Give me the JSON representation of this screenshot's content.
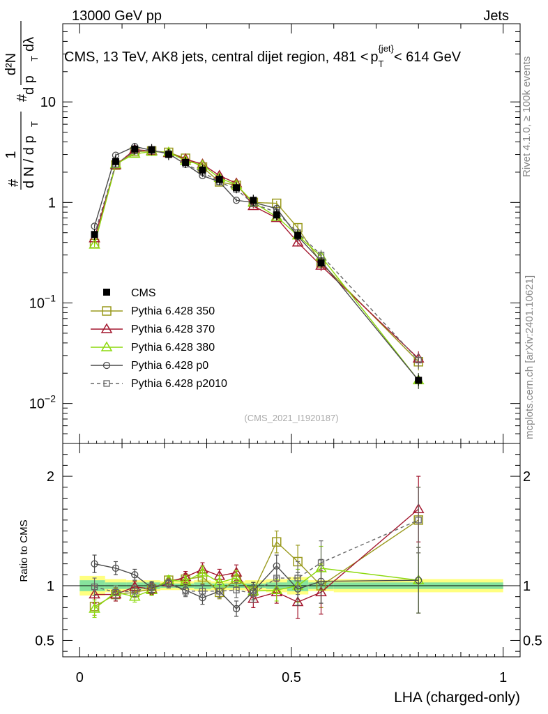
{
  "header": {
    "energy": "13000 GeV pp",
    "category": "Jets"
  },
  "side": {
    "rivet": "Rivet 4.1.0, ≥ 100k events",
    "mcplots": "mcplots.cern.ch [arXiv:2401.10621]"
  },
  "watermark": "(CMS_2021_I1920187)",
  "ylabel_parts": {
    "n1": "1",
    "d1": "d N / d p",
    "t1": "T",
    "hash": "#",
    "n2": "d²N",
    "d2": "d p",
    "t2": "T",
    "d3": "dλ"
  },
  "chart_data": {
    "type": "line",
    "title": "CMS, 13 TeV, AK8 jets, central dijet region, 481 < p_T^{jet} < 614 GeV",
    "title_parts": {
      "main": "CMS, 13 TeV, AK8 jets, central dijet region, 481 <",
      "p": "p",
      "sub": "T",
      "sup": "{jet}",
      "tail": "< 614 GeV"
    },
    "xlabel": "LHA (charged-only)",
    "ylabel": "#1/dN/dp_T # d²N/dp_T dλ",
    "ratio_ylabel": "Ratio to CMS",
    "xlim": [
      -0.04,
      1.04
    ],
    "ylim": [
      0.004,
      60
    ],
    "yscale": "log",
    "ratio_ylim": [
      0.35,
      2.3
    ],
    "x_ticks": [
      0,
      0.5,
      1
    ],
    "x_tick_labels": [
      "0",
      "0.5",
      "1"
    ],
    "y_ticks": [
      0.01,
      0.1,
      1,
      10
    ],
    "y_tick_labels": [
      {
        "base": "10",
        "exp": "−2"
      },
      {
        "base": "10",
        "exp": "−1"
      },
      {
        "base": "1",
        "exp": ""
      },
      {
        "base": "10",
        "exp": ""
      }
    ],
    "ratio_ticks": [
      0.5,
      1,
      2
    ],
    "ratio_tick_labels": [
      "0.5",
      "1",
      "2"
    ],
    "legend_position": "middle-left",
    "x": [
      0.035,
      0.085,
      0.13,
      0.17,
      0.21,
      0.25,
      0.29,
      0.33,
      0.37,
      0.41,
      0.465,
      0.515,
      0.57,
      0.8
    ],
    "data": {
      "name": "CMS",
      "values": [
        0.48,
        2.55,
        3.4,
        3.35,
        3.0,
        2.5,
        2.1,
        1.7,
        1.4,
        1.05,
        0.75,
        0.47,
        0.25,
        0.017
      ],
      "band_edges": [
        0.0,
        0.06,
        0.11,
        0.15,
        0.19,
        0.23,
        0.27,
        0.31,
        0.35,
        0.39,
        0.44,
        0.49,
        0.54,
        0.6,
        1.0
      ],
      "band_inner": [
        0.05,
        0.03,
        0.03,
        0.03,
        0.02,
        0.02,
        0.03,
        0.02,
        0.02,
        0.02,
        0.03,
        0.05,
        0.03,
        0.03
      ],
      "band_outer": [
        0.09,
        0.06,
        0.05,
        0.05,
        0.04,
        0.04,
        0.05,
        0.04,
        0.04,
        0.05,
        0.06,
        0.08,
        0.05,
        0.06
      ]
    },
    "series": [
      {
        "name": "Pythia 6.428 350",
        "color": "#9a9a1e",
        "marker": "square",
        "dashed": false,
        "values": [
          0.39,
          2.35,
          3.2,
          3.25,
          3.15,
          2.75,
          2.25,
          1.6,
          1.48,
          1.0,
          0.98,
          0.56,
          0.25,
          0.026
        ],
        "ratio": [
          0.81,
          0.92,
          0.94,
          0.97,
          1.05,
          1.06,
          1.08,
          0.94,
          1.06,
          0.95,
          1.4,
          1.22,
          1.0,
          1.6
        ],
        "err": [
          0.08,
          0.06,
          0.05,
          0.05,
          0.04,
          0.05,
          0.06,
          0.06,
          0.07,
          0.08,
          0.1,
          0.15,
          0.2,
          0.3
        ]
      },
      {
        "name": "Pythia 6.428 370",
        "color": "#a3172e",
        "marker": "triangle",
        "dashed": false,
        "values": [
          0.44,
          2.35,
          3.35,
          3.25,
          3.1,
          2.7,
          2.4,
          1.85,
          1.55,
          0.92,
          0.7,
          0.4,
          0.235,
          0.028
        ],
        "ratio": [
          0.92,
          0.92,
          0.99,
          0.97,
          1.03,
          1.08,
          1.15,
          1.09,
          1.12,
          0.88,
          0.94,
          0.85,
          0.94,
          1.7
        ],
        "err": [
          0.08,
          0.06,
          0.05,
          0.05,
          0.04,
          0.05,
          0.06,
          0.06,
          0.07,
          0.08,
          0.1,
          0.15,
          0.2,
          0.3
        ]
      },
      {
        "name": "Pythia 6.428 380",
        "color": "#8cd90c",
        "marker": "triangle",
        "dashed": false,
        "values": [
          0.38,
          2.4,
          3.05,
          3.2,
          3.15,
          2.6,
          2.35,
          1.75,
          1.5,
          1.0,
          0.72,
          0.47,
          0.29,
          0.017
        ],
        "ratio": [
          0.79,
          0.94,
          0.9,
          0.96,
          1.05,
          1.04,
          1.12,
          1.03,
          1.07,
          0.95,
          0.96,
          1.0,
          1.16,
          1.05
        ],
        "err": [
          0.08,
          0.06,
          0.05,
          0.05,
          0.04,
          0.05,
          0.06,
          0.06,
          0.07,
          0.08,
          0.1,
          0.15,
          0.2,
          0.3
        ]
      },
      {
        "name": "Pythia 6.428 p0",
        "color": "#4a4a4a",
        "marker": "circle",
        "dashed": false,
        "values": [
          0.58,
          2.95,
          3.6,
          3.3,
          3.05,
          2.4,
          1.85,
          1.6,
          1.05,
          1.0,
          0.87,
          0.46,
          0.26,
          0.017
        ],
        "ratio": [
          1.2,
          1.16,
          1.1,
          0.98,
          1.02,
          0.96,
          0.89,
          0.95,
          0.79,
          0.95,
          1.18,
          0.97,
          1.04,
          1.05
        ],
        "err": [
          0.08,
          0.06,
          0.05,
          0.05,
          0.04,
          0.05,
          0.06,
          0.06,
          0.07,
          0.08,
          0.1,
          0.15,
          0.2,
          0.3
        ]
      },
      {
        "name": "Pythia 6.428 p2010",
        "color": "#666666",
        "marker": "square-small",
        "dashed": true,
        "values": [
          0.48,
          2.4,
          3.25,
          3.3,
          3.05,
          2.4,
          2.0,
          1.6,
          1.35,
          0.97,
          0.8,
          0.5,
          0.3,
          0.027
        ],
        "ratio": [
          0.99,
          0.94,
          0.95,
          0.99,
          1.02,
          0.95,
          0.95,
          0.95,
          0.96,
          0.93,
          1.07,
          1.07,
          1.21,
          1.6
        ],
        "err": [
          0.08,
          0.06,
          0.05,
          0.05,
          0.04,
          0.05,
          0.06,
          0.06,
          0.07,
          0.08,
          0.1,
          0.15,
          0.2,
          0.3
        ]
      }
    ]
  }
}
